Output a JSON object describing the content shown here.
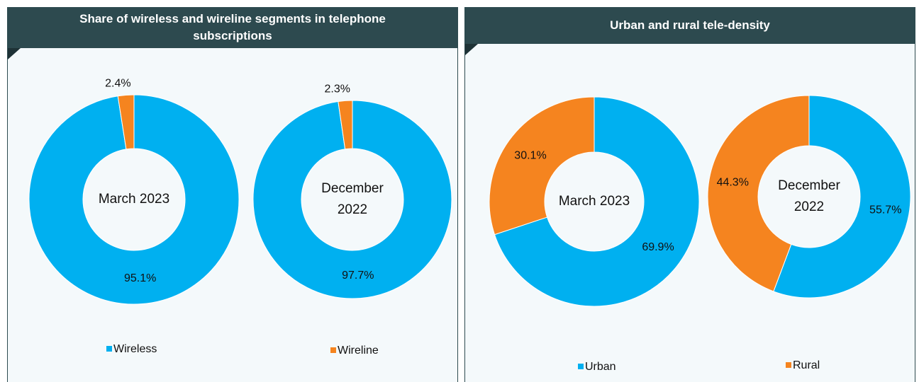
{
  "chart_data": [
    {
      "type": "donut",
      "title": "Share of wireless and wireline segments in telephone subscriptions",
      "categories": [
        "Wireless",
        "Wireline"
      ],
      "colors": [
        "#00b0f0",
        "#f5841f"
      ],
      "series": [
        {
          "name": "March 2023",
          "values": [
            95.1,
            2.4
          ],
          "value_labels": [
            "95.1%",
            "2.4%"
          ]
        },
        {
          "name": "December 2022",
          "values": [
            97.7,
            2.3
          ],
          "value_labels": [
            "97.7%",
            "2.3%"
          ]
        }
      ]
    },
    {
      "type": "donut",
      "title": "Urban and rural tele-density",
      "categories": [
        "Urban",
        "Rural"
      ],
      "colors": [
        "#00b0f0",
        "#f5841f"
      ],
      "series": [
        {
          "name": "March 2023",
          "values": [
            69.9,
            30.1
          ],
          "value_labels": [
            "69.9%",
            "30.1%"
          ]
        },
        {
          "name": "December 2022",
          "values": [
            55.7,
            44.3
          ],
          "value_labels": [
            "55.7%",
            "44.3%"
          ]
        }
      ]
    }
  ]
}
